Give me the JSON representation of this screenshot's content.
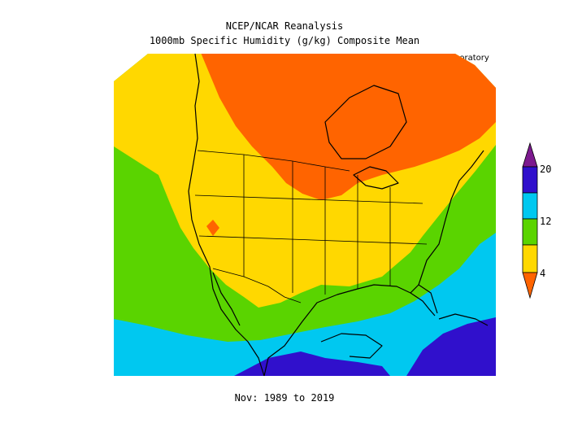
{
  "header": {
    "title": "NCEP/NCAR Reanalysis",
    "subtitle": "1000mb Specific Humidity (g/kg) Composite Mean",
    "credit": "NOAA Physical Sciences Laboratory"
  },
  "footer": {
    "period": "Nov: 1989 to 2019"
  },
  "colorbar": {
    "tick_labels": [
      "20",
      "12",
      "4"
    ],
    "bands": [
      {
        "range": ">20",
        "color": "#7d1a8f"
      },
      {
        "range": "16-20",
        "color": "#3010cc"
      },
      {
        "range": "12-16",
        "color": "#00c8f0"
      },
      {
        "range": "8-12",
        "color": "#5ad400"
      },
      {
        "range": "4-8",
        "color": "#ffd800"
      },
      {
        "range": "<4",
        "color": "#ff6400"
      }
    ]
  },
  "map": {
    "region": "North America",
    "variable": "specific humidity",
    "units": "g/kg",
    "colors": {
      "lt4": "#ff6400",
      "b4_8": "#ffd800",
      "b8_12": "#5ad400",
      "b12_16": "#00c8f0",
      "b16_20": "#3010cc",
      "outline": "#000000"
    }
  }
}
